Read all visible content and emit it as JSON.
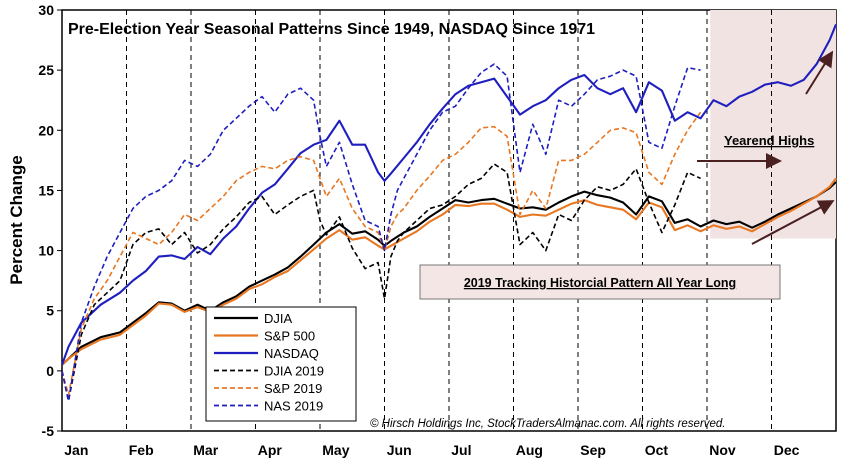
{
  "chart_data": {
    "type": "line",
    "title": "Pre-Election Year Seasonal Patterns Since 1949, NASDAQ Since 1971",
    "xlabel": "",
    "ylabel": "Percent Change",
    "ylim": [
      -5,
      30
    ],
    "yticks": [
      "-5",
      "0",
      "5",
      "10",
      "15",
      "20",
      "25",
      "30"
    ],
    "months": [
      "Jan",
      "Feb",
      "Mar",
      "Apr",
      "May",
      "Jun",
      "Jul",
      "Aug",
      "Sep",
      "Oct",
      "Nov",
      "Dec"
    ],
    "x_unit": "month index (0 = start of Jan, 12 = end of Dec)",
    "grid": "vertical dashed month gridlines",
    "highlight_region": {
      "x_start": 10.05,
      "x_end": 12.0,
      "y_min": 11,
      "y_max": 30,
      "color": "#f2e3e3"
    },
    "annotations": [
      {
        "text": "Yearend Highs",
        "underline": true
      },
      {
        "text": "2019 Tracking Historcial Pattern All Year Long",
        "underline": true,
        "boxed": true,
        "fill": "#f5e6e6"
      },
      {
        "text": "© Hirsch Holdings Inc, StockTradersAlmanac.com. All rights reserved.",
        "italic": true
      }
    ],
    "series": [
      {
        "name": "DJIA",
        "color": "#000000",
        "dash": "solid",
        "x": [
          0,
          0.1,
          0.3,
          0.6,
          0.9,
          1.1,
          1.3,
          1.5,
          1.7,
          1.9,
          2.1,
          2.3,
          2.5,
          2.7,
          2.9,
          3.1,
          3.3,
          3.5,
          3.7,
          3.9,
          4.1,
          4.3,
          4.5,
          4.7,
          4.9,
          5.0,
          5.1,
          5.3,
          5.5,
          5.7,
          5.9,
          6.1,
          6.3,
          6.5,
          6.7,
          6.9,
          7.1,
          7.3,
          7.5,
          7.7,
          7.9,
          8.1,
          8.3,
          8.5,
          8.7,
          8.9,
          9.1,
          9.3,
          9.5,
          9.7,
          9.9,
          10.1,
          10.3,
          10.5,
          10.7,
          10.9,
          11.1,
          11.3,
          11.5,
          11.7,
          11.9,
          12.0
        ],
        "values": [
          0.5,
          1.0,
          2.0,
          2.8,
          3.2,
          4.0,
          4.8,
          5.7,
          5.6,
          5.0,
          5.5,
          5.0,
          5.7,
          6.2,
          7.0,
          7.5,
          8.0,
          8.6,
          9.5,
          10.5,
          11.5,
          12.2,
          11.4,
          11.6,
          10.9,
          10.4,
          10.8,
          11.5,
          12.0,
          12.8,
          13.5,
          14.2,
          14.0,
          14.2,
          14.3,
          13.9,
          13.5,
          13.6,
          13.4,
          14.0,
          14.5,
          14.9,
          14.6,
          14.4,
          14.0,
          13.0,
          14.5,
          14.1,
          12.3,
          12.6,
          12.0,
          12.5,
          12.2,
          12.4,
          11.9,
          12.4,
          13.0,
          13.5,
          14.0,
          14.5,
          15.2,
          15.7
        ]
      },
      {
        "name": "S&P 500",
        "color": "#e87722",
        "dash": "solid",
        "x": [
          0,
          0.1,
          0.3,
          0.6,
          0.9,
          1.1,
          1.3,
          1.5,
          1.7,
          1.9,
          2.1,
          2.3,
          2.5,
          2.7,
          2.9,
          3.1,
          3.3,
          3.5,
          3.7,
          3.9,
          4.1,
          4.3,
          4.5,
          4.7,
          4.9,
          5.0,
          5.1,
          5.3,
          5.5,
          5.7,
          5.9,
          6.1,
          6.3,
          6.5,
          6.7,
          6.9,
          7.1,
          7.3,
          7.5,
          7.7,
          7.9,
          8.1,
          8.3,
          8.5,
          8.7,
          8.9,
          9.1,
          9.3,
          9.5,
          9.7,
          9.9,
          10.1,
          10.3,
          10.5,
          10.7,
          10.9,
          11.1,
          11.3,
          11.5,
          11.7,
          11.9,
          12.0
        ],
        "values": [
          0.5,
          1.0,
          1.8,
          2.6,
          3.0,
          3.8,
          4.6,
          5.6,
          5.5,
          4.9,
          5.3,
          4.9,
          5.5,
          6.0,
          6.8,
          7.2,
          7.8,
          8.3,
          9.2,
          10.1,
          11.0,
          11.7,
          10.9,
          11.1,
          10.4,
          10.1,
          10.4,
          11.0,
          11.6,
          12.4,
          13.0,
          13.8,
          13.7,
          13.9,
          13.9,
          13.4,
          12.8,
          13.0,
          12.9,
          13.4,
          13.9,
          14.2,
          13.8,
          13.6,
          13.4,
          12.6,
          14.0,
          13.6,
          11.7,
          12.1,
          11.6,
          12.1,
          11.8,
          12.0,
          11.6,
          12.2,
          12.8,
          13.3,
          13.9,
          14.5,
          15.3,
          16.0
        ]
      },
      {
        "name": "NASDAQ",
        "color": "#1f1fbf",
        "dash": "solid",
        "x": [
          0,
          0.1,
          0.3,
          0.6,
          0.9,
          1.1,
          1.3,
          1.5,
          1.7,
          1.9,
          2.1,
          2.3,
          2.5,
          2.7,
          2.9,
          3.1,
          3.3,
          3.5,
          3.7,
          3.9,
          4.1,
          4.3,
          4.5,
          4.7,
          4.9,
          5.0,
          5.1,
          5.3,
          5.5,
          5.7,
          5.9,
          6.1,
          6.3,
          6.5,
          6.7,
          6.9,
          7.1,
          7.3,
          7.5,
          7.7,
          7.9,
          8.1,
          8.3,
          8.5,
          8.7,
          8.9,
          9.1,
          9.3,
          9.5,
          9.7,
          9.9,
          10.1,
          10.3,
          10.5,
          10.7,
          10.9,
          11.1,
          11.3,
          11.5,
          11.7,
          11.9,
          12.0
        ],
        "values": [
          0.5,
          2.0,
          4.0,
          5.5,
          6.5,
          7.5,
          8.3,
          9.5,
          9.6,
          9.3,
          10.3,
          9.7,
          11.0,
          12.0,
          13.5,
          14.8,
          15.5,
          16.8,
          18.1,
          18.8,
          19.2,
          20.8,
          18.8,
          18.8,
          16.5,
          15.8,
          16.4,
          17.7,
          19.0,
          20.5,
          21.8,
          23.0,
          23.7,
          24.0,
          24.3,
          22.8,
          21.3,
          22.0,
          22.5,
          23.5,
          24.2,
          24.6,
          23.5,
          23.0,
          23.5,
          21.5,
          24.0,
          23.3,
          20.8,
          21.5,
          21.0,
          22.5,
          22.0,
          22.8,
          23.2,
          23.8,
          24.0,
          23.7,
          24.2,
          25.5,
          27.5,
          28.8
        ]
      },
      {
        "name": "DJIA 2019",
        "color": "#000000",
        "dash": "dashed",
        "x": [
          0,
          0.1,
          0.3,
          0.5,
          0.7,
          0.9,
          1.1,
          1.3,
          1.5,
          1.7,
          1.9,
          2.1,
          2.3,
          2.5,
          2.7,
          2.9,
          3.1,
          3.3,
          3.5,
          3.7,
          3.9,
          4.0,
          4.1,
          4.3,
          4.5,
          4.7,
          4.9,
          5.0,
          5.1,
          5.2,
          5.3,
          5.5,
          5.7,
          5.9,
          6.1,
          6.3,
          6.5,
          6.7,
          6.9,
          7.1,
          7.3,
          7.5,
          7.7,
          7.9,
          8.1,
          8.3,
          8.5,
          8.7,
          8.9,
          9.1,
          9.3,
          9.5,
          9.7,
          9.9
        ],
        "values": [
          0.0,
          -2.5,
          3.0,
          5.5,
          6.5,
          7.5,
          10.5,
          11.5,
          11.8,
          10.5,
          11.5,
          9.8,
          10.5,
          11.8,
          12.8,
          14.0,
          14.5,
          13.0,
          13.8,
          14.5,
          15.0,
          12.5,
          11.3,
          12.8,
          10.2,
          8.5,
          9.0,
          6.0,
          9.5,
          10.8,
          11.5,
          12.5,
          13.5,
          13.8,
          14.5,
          15.5,
          16.0,
          17.2,
          16.5,
          10.5,
          11.5,
          10.0,
          13.0,
          12.5,
          14.2,
          15.3,
          15.0,
          15.5,
          16.8,
          14.0,
          11.5,
          13.8,
          16.5,
          16.0
        ]
      },
      {
        "name": "S&P 2019",
        "color": "#e87722",
        "dash": "dashed",
        "x": [
          0,
          0.1,
          0.3,
          0.5,
          0.7,
          0.9,
          1.1,
          1.3,
          1.5,
          1.7,
          1.9,
          2.1,
          2.3,
          2.5,
          2.7,
          2.9,
          3.1,
          3.3,
          3.5,
          3.7,
          3.9,
          4.0,
          4.1,
          4.3,
          4.5,
          4.7,
          4.9,
          5.0,
          5.1,
          5.2,
          5.3,
          5.5,
          5.7,
          5.9,
          6.1,
          6.3,
          6.5,
          6.7,
          6.9,
          7.1,
          7.3,
          7.5,
          7.7,
          7.9,
          8.1,
          8.3,
          8.5,
          8.7,
          8.9,
          9.1,
          9.3,
          9.5,
          9.7,
          9.9
        ],
        "values": [
          0.0,
          -2.0,
          3.5,
          6.0,
          7.5,
          9.5,
          11.5,
          11.0,
          10.5,
          11.5,
          13.0,
          12.5,
          13.5,
          14.5,
          15.8,
          16.5,
          17.0,
          16.8,
          17.5,
          17.8,
          17.5,
          16.0,
          14.5,
          16.0,
          13.5,
          12.0,
          11.5,
          10.0,
          12.0,
          13.0,
          13.5,
          15.0,
          16.2,
          17.5,
          18.0,
          19.0,
          20.2,
          20.3,
          19.5,
          13.0,
          15.0,
          13.5,
          17.5,
          17.5,
          18.0,
          19.0,
          20.0,
          20.2,
          19.8,
          16.5,
          15.5,
          18.0,
          20.0,
          21.5
        ]
      },
      {
        "name": "NAS 2019",
        "color": "#1f1fbf",
        "dash": "dashed",
        "x": [
          0,
          0.1,
          0.3,
          0.5,
          0.7,
          0.9,
          1.1,
          1.3,
          1.5,
          1.7,
          1.9,
          2.1,
          2.3,
          2.5,
          2.7,
          2.9,
          3.1,
          3.3,
          3.5,
          3.7,
          3.9,
          4.0,
          4.1,
          4.3,
          4.5,
          4.7,
          4.9,
          5.0,
          5.1,
          5.2,
          5.3,
          5.5,
          5.7,
          5.9,
          6.1,
          6.3,
          6.5,
          6.7,
          6.9,
          7.1,
          7.3,
          7.5,
          7.7,
          7.9,
          8.1,
          8.3,
          8.5,
          8.7,
          8.9,
          9.1,
          9.3,
          9.5,
          9.7,
          9.9
        ],
        "values": [
          0.0,
          -2.5,
          4.0,
          7.0,
          9.5,
          11.5,
          13.5,
          14.5,
          15.0,
          15.8,
          17.5,
          17.0,
          18.0,
          20.0,
          21.0,
          22.0,
          22.8,
          21.5,
          23.0,
          23.5,
          22.5,
          19.5,
          17.0,
          19.0,
          15.5,
          12.5,
          12.0,
          10.0,
          13.0,
          15.0,
          16.0,
          18.0,
          20.0,
          21.5,
          22.0,
          23.5,
          24.8,
          25.5,
          24.5,
          16.5,
          20.5,
          18.0,
          22.5,
          22.0,
          23.0,
          24.2,
          24.5,
          25.0,
          24.5,
          19.0,
          18.5,
          22.0,
          25.2,
          25.0
        ]
      }
    ]
  }
}
